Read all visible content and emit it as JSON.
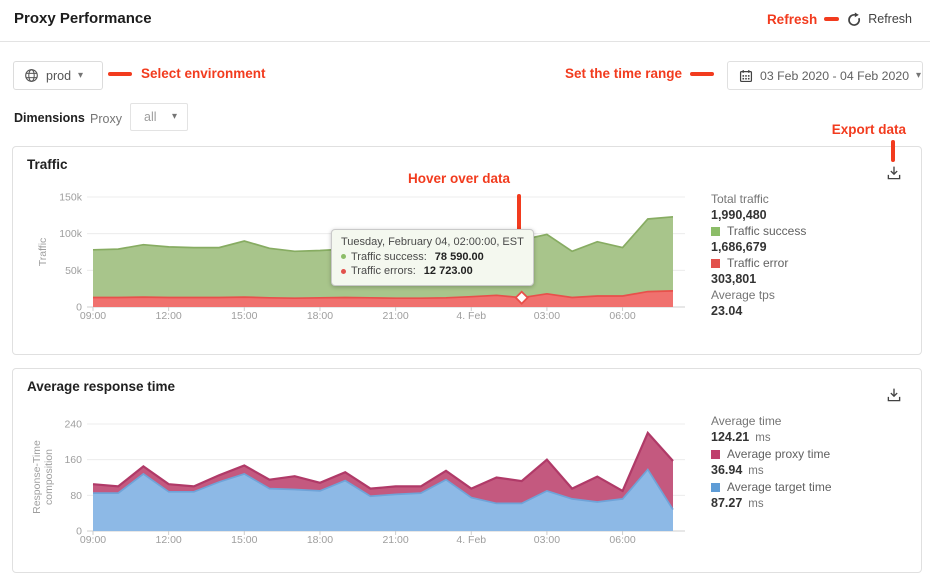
{
  "page": {
    "title": "Proxy Performance"
  },
  "header": {
    "refresh_label": "Refresh"
  },
  "annotations": {
    "refresh": "Refresh",
    "select_environment": "Select environment",
    "set_time_range": "Set the time range",
    "hover_over_data": "Hover over data",
    "export_data": "Export data"
  },
  "colors": {
    "annotation_red": "#f23b1e",
    "success_green": "#8cbd68",
    "error_red": "#e2514c",
    "proxy_magenta": "#bf3f6c",
    "target_blue": "#5e9cd6"
  },
  "toolbar": {
    "environment_value": "prod",
    "date_range_value": "03 Feb 2020 - 04 Feb 2020",
    "dimensions_label": "Dimensions",
    "proxy_label": "Proxy",
    "proxy_filter_value": "all"
  },
  "traffic_card": {
    "title": "Traffic",
    "y_axis_label": "Traffic",
    "stats": {
      "total_label": "Total traffic",
      "total_value": "1,990,480",
      "success_label": "Traffic success",
      "success_value": "1,686,679",
      "error_label": "Traffic error",
      "error_value": "303,801",
      "tps_label": "Average tps",
      "tps_value": "23.04"
    },
    "tooltip": {
      "title": "Tuesday, February 04, 02:00:00, EST",
      "success_label": "Traffic success:",
      "success_value": "78 590.00",
      "errors_label": "Traffic errors:",
      "errors_value": "12 723.00"
    }
  },
  "response_card": {
    "title": "Average response time",
    "y_axis_label_line1": "Response-Time",
    "y_axis_label_line2": "composition",
    "stats": {
      "avg_label": "Average time",
      "avg_value": "124.21",
      "avg_unit": "ms",
      "proxy_label": "Average proxy time",
      "proxy_value": "36.94",
      "proxy_unit": "ms",
      "target_label": "Average target time",
      "target_value": "87.27",
      "target_unit": "ms"
    }
  },
  "chart_data": [
    {
      "type": "area",
      "stacked": true,
      "title": "Traffic",
      "ylabel": "Traffic",
      "xlabel": "",
      "x": [
        "09:00",
        "10:00",
        "11:00",
        "12:00",
        "13:00",
        "14:00",
        "15:00",
        "16:00",
        "17:00",
        "18:00",
        "19:00",
        "20:00",
        "21:00",
        "22:00",
        "23:00",
        "4. Feb",
        "01:00",
        "02:00",
        "03:00",
        "04:00",
        "05:00",
        "06:00",
        "07:00",
        "08:00"
      ],
      "x_ticks": [
        {
          "index": 0,
          "label": "09:00"
        },
        {
          "index": 3,
          "label": "12:00"
        },
        {
          "index": 6,
          "label": "15:00"
        },
        {
          "index": 9,
          "label": "18:00"
        },
        {
          "index": 12,
          "label": "21:00"
        },
        {
          "index": 15,
          "label": "4. Feb"
        },
        {
          "index": 18,
          "label": "03:00"
        },
        {
          "index": 21,
          "label": "06:00"
        }
      ],
      "ylim": [
        0,
        150000
      ],
      "yticks": [
        {
          "v": 0,
          "label": "0"
        },
        {
          "v": 50000,
          "label": "50k"
        },
        {
          "v": 100000,
          "label": "100k"
        },
        {
          "v": 150000,
          "label": "150k"
        }
      ],
      "grid": "horizontal",
      "legend_position": "right",
      "series": [
        {
          "name": "Traffic error",
          "values": [
            13000,
            13000,
            13500,
            13000,
            13000,
            13000,
            13500,
            12500,
            12000,
            12500,
            13000,
            12500,
            12000,
            12000,
            12500,
            14000,
            16000,
            12723,
            18000,
            13000,
            15000,
            15000,
            21000,
            22000
          ],
          "fill": "#f0716e",
          "stroke": "#e8504b",
          "stroke_width": 1.7
        },
        {
          "name": "Traffic success",
          "values": [
            65000,
            66000,
            71500,
            69000,
            68000,
            68000,
            76500,
            67500,
            64000,
            64500,
            66000,
            64500,
            64000,
            65000,
            67500,
            68000,
            67000,
            78590,
            81000,
            63000,
            74000,
            66000,
            99000,
            101000
          ],
          "fill": "#a8c58b",
          "stroke": "#87ac62",
          "stroke_width": 1.7
        }
      ],
      "markers": [
        {
          "index": 17,
          "level": 1,
          "shape": "circle",
          "fill": "#98b974",
          "stroke": "#ffffff"
        },
        {
          "index": 17,
          "level": 0,
          "shape": "diamond",
          "fill": "#ffffff",
          "stroke": "#e8504b"
        }
      ]
    },
    {
      "type": "area",
      "stacked": true,
      "title": "Average response time",
      "ylabel": "Response-Time composition",
      "xlabel": "",
      "x": [
        "09:00",
        "10:00",
        "11:00",
        "12:00",
        "13:00",
        "14:00",
        "15:00",
        "16:00",
        "17:00",
        "18:00",
        "19:00",
        "20:00",
        "21:00",
        "22:00",
        "23:00",
        "4. Feb",
        "01:00",
        "02:00",
        "03:00",
        "04:00",
        "05:00",
        "06:00",
        "07:00",
        "08:00"
      ],
      "x_ticks": [
        {
          "index": 0,
          "label": "09:00"
        },
        {
          "index": 3,
          "label": "12:00"
        },
        {
          "index": 6,
          "label": "15:00"
        },
        {
          "index": 9,
          "label": "18:00"
        },
        {
          "index": 12,
          "label": "21:00"
        },
        {
          "index": 15,
          "label": "4. Feb"
        },
        {
          "index": 18,
          "label": "03:00"
        },
        {
          "index": 21,
          "label": "06:00"
        }
      ],
      "ylim": [
        0,
        240
      ],
      "yticks": [
        {
          "v": 0,
          "label": "0"
        },
        {
          "v": 80,
          "label": "80"
        },
        {
          "v": 160,
          "label": "160"
        },
        {
          "v": 240,
          "label": "240"
        }
      ],
      "grid": "horizontal",
      "legend_position": "right",
      "series": [
        {
          "name": "Average target time",
          "values": [
            85,
            85,
            128,
            88,
            88,
            110,
            128,
            95,
            93,
            90,
            113,
            78,
            82,
            85,
            115,
            75,
            62,
            62,
            90,
            72,
            65,
            72,
            138,
            48
          ],
          "fill": "#8db9e6",
          "stroke": "#6fa3d8",
          "stroke_width": 1.7
        },
        {
          "name": "Average proxy time",
          "values": [
            20,
            15,
            17,
            17,
            12,
            15,
            19,
            20,
            30,
            18,
            19,
            17,
            18,
            15,
            20,
            20,
            58,
            50,
            70,
            23,
            57,
            18,
            82,
            109
          ],
          "fill": "#c4597f",
          "stroke": "#b03a68",
          "stroke_width": 2.2
        }
      ],
      "markers": []
    }
  ]
}
